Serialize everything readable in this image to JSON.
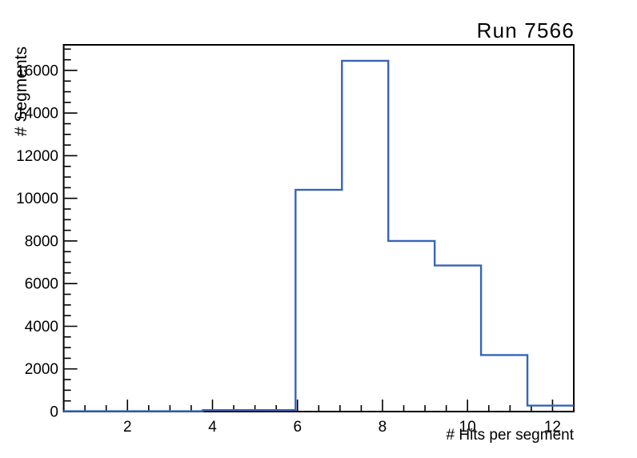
{
  "canvas": {
    "background": "#ffffff"
  },
  "chart_data": {
    "type": "bar",
    "subtype": "step-histogram",
    "title": "Run 7566",
    "xlabel": "# Hits per segment",
    "ylabel": "# Segments",
    "xlim": [
      0.5,
      12.5
    ],
    "ylim": [
      0,
      17200
    ],
    "n_bins": 11,
    "bin_edges": [
      0.5,
      1.5909,
      2.6818,
      3.7727,
      4.8636,
      5.9545,
      7.0455,
      8.1364,
      9.2273,
      10.3182,
      11.4091,
      12.5
    ],
    "values": [
      15,
      15,
      15,
      70,
      70,
      10400,
      16450,
      8000,
      6850,
      2650,
      280
    ],
    "x_major_ticks": [
      2,
      4,
      6,
      8,
      10,
      12
    ],
    "x_minor_tick_step": 0.5,
    "y_major_ticks": [
      0,
      2000,
      4000,
      6000,
      8000,
      10000,
      12000,
      14000,
      16000
    ],
    "y_minor_tick_step": 500,
    "grid": false,
    "legend": false,
    "ticks_inside": true,
    "line_color": "#3764b9",
    "axis_color": "#000000",
    "text_color": "#000000"
  }
}
